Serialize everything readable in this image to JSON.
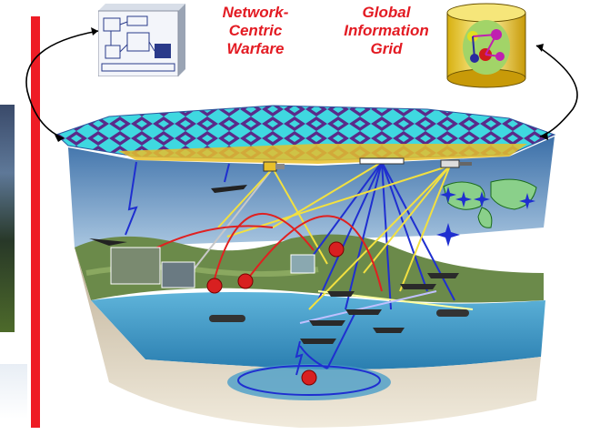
{
  "labels": {
    "network_centric_warfare": "Network-\nCentric\nWarfare",
    "global_information_grid": "Global\nInformation\nGrid"
  },
  "colors": {
    "accent_red": "#e31b23",
    "bar_red": "#ee1c25",
    "grid_cyan": "#3fd8e0",
    "grid_purple": "#5a2a8a",
    "grid_gold": "#e8c02a",
    "sky": "#6f98c8",
    "water": "#4a9ec8",
    "link_blue": "#1f2fd0",
    "link_yellow": "#f2e040",
    "link_red": "#e02020"
  },
  "icons": [
    "schematic-diagram-icon",
    "database-cylinder-icon",
    "satellite-icon",
    "aircraft-icon",
    "ship-icon",
    "submarine-icon",
    "radar-icon",
    "world-map-icon"
  ]
}
